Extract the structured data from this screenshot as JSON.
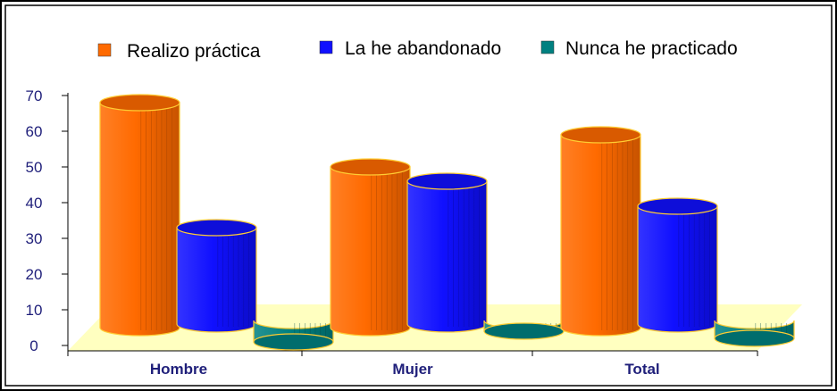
{
  "chart_data": {
    "type": "bar",
    "style": "3d-cylinder",
    "categories": [
      "Hombre",
      "Mujer",
      "Total"
    ],
    "series": [
      {
        "name": "Realizo práctica",
        "values": [
          68,
          50,
          59
        ],
        "color": "#ff6a00"
      },
      {
        "name": "La he abandonado",
        "values": [
          33,
          46,
          39
        ],
        "color": "#1010ff"
      },
      {
        "name": "Nunca he practicado",
        "values": [
          1,
          4,
          2
        ],
        "color": "#008080"
      }
    ],
    "yticks": [
      "0",
      "10",
      "20",
      "30",
      "40",
      "50",
      "60",
      "70"
    ],
    "ylim": [
      0,
      70
    ],
    "grid": false,
    "legend_position": "top",
    "floor_color": "#ffffc0",
    "text_color": "#1f1f7a"
  }
}
